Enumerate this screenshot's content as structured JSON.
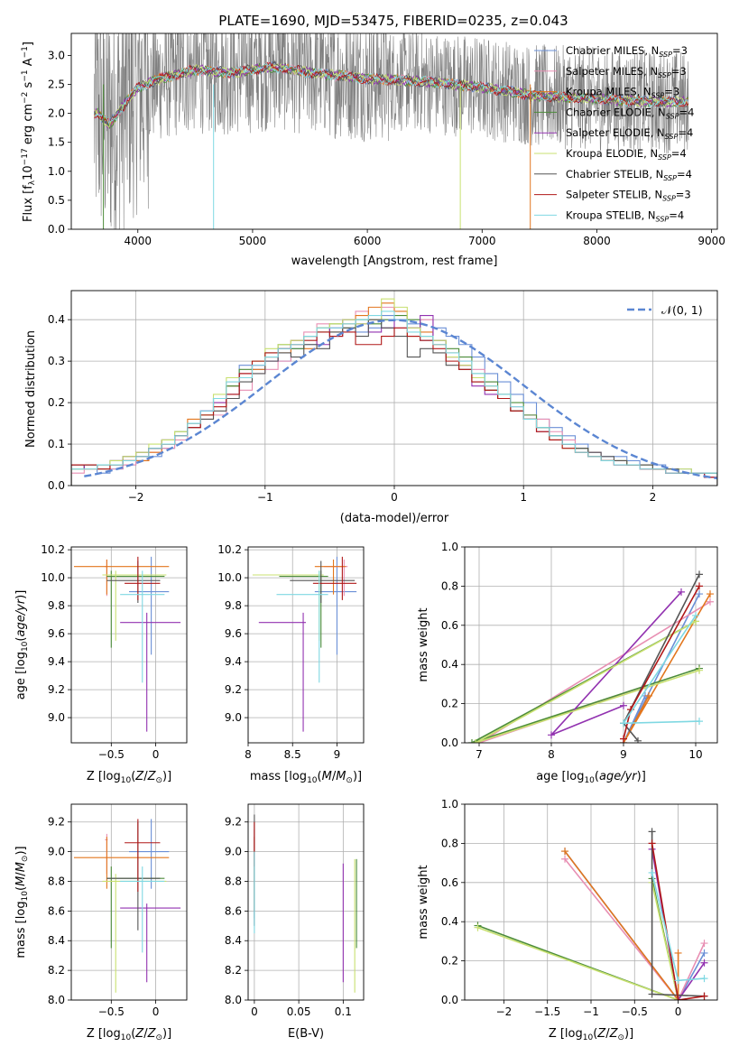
{
  "figure_title": "PLATE=1690, MJD=53475, FIBERID=0235, z=0.043",
  "colors": {
    "c1": "#6a8fd6",
    "c2": "#e88fb3",
    "c3": "#e2761e",
    "c4": "#4c8c3a",
    "c5": "#9232b0",
    "c6": "#c8e070",
    "c7": "#555555",
    "c8": "#b01818",
    "c9": "#7fd8e2",
    "data": "#808080",
    "gauss": "#5b86d2",
    "grid": "#b0b0b0"
  },
  "chart_data": [
    {
      "id": "spectrum",
      "type": "line",
      "xlabel": "wavelength [Angstrom, rest frame]",
      "ylabel": "Flux [f_λ 10^-17 erg cm^-2 s^-1 A^-1]",
      "xlim": [
        3420,
        9050
      ],
      "ylim": [
        0,
        3.38
      ],
      "xticks": [
        4000,
        5000,
        6000,
        7000,
        8000,
        9000
      ],
      "yticks": [
        0.0,
        0.5,
        1.0,
        1.5,
        2.0,
        2.5,
        3.0
      ],
      "grid": false,
      "legend_position": "top-right",
      "legend": [
        {
          "label": "Chabrier MILES, N",
          "sub": "SSP",
          "n": "=3",
          "color": "c1"
        },
        {
          "label": "Salpeter MILES, N",
          "sub": "SSP",
          "n": "=3",
          "color": "c2"
        },
        {
          "label": "Kroupa MILES, N",
          "sub": "SSP",
          "n": "=3",
          "color": "c3"
        },
        {
          "label": "Chabrier ELODIE, N",
          "sub": "SSP",
          "n": "=4",
          "color": "c4"
        },
        {
          "label": "Salpeter ELODIE, N",
          "sub": "SSP",
          "n": "=4",
          "color": "c5"
        },
        {
          "label": "Kroupa ELODIE, N",
          "sub": "SSP",
          "n": "=4",
          "color": "c6"
        },
        {
          "label": "Chabrier STELIB, N",
          "sub": "SSP",
          "n": "=4",
          "color": "c7"
        },
        {
          "label": "Salpeter STELIB, N",
          "sub": "SSP",
          "n": "=3",
          "color": "c8"
        },
        {
          "label": "Kroupa STELIB, N",
          "sub": "SSP",
          "n": "=4",
          "color": "c9"
        }
      ],
      "data_range": [
        3620,
        8800
      ],
      "model_continuum": [
        [
          3650,
          2.0
        ],
        [
          3750,
          1.8
        ],
        [
          3900,
          2.2
        ],
        [
          4000,
          2.45
        ],
        [
          4200,
          2.6
        ],
        [
          4500,
          2.75
        ],
        [
          4800,
          2.7
        ],
        [
          5000,
          2.75
        ],
        [
          5200,
          2.8
        ],
        [
          5500,
          2.7
        ],
        [
          6000,
          2.6
        ],
        [
          6500,
          2.55
        ],
        [
          7000,
          2.45
        ],
        [
          7500,
          2.3
        ],
        [
          8000,
          2.25
        ],
        [
          8500,
          2.2
        ],
        [
          8800,
          2.2
        ]
      ]
    },
    {
      "id": "residuals",
      "type": "histogram",
      "xlabel": "(data-model)/error",
      "ylabel": "Normed distribution",
      "xlim": [
        -2.5,
        2.5
      ],
      "ylim": [
        0,
        0.47
      ],
      "xticks": [
        -2,
        -1,
        0,
        1,
        2
      ],
      "yticks": [
        0.0,
        0.1,
        0.2,
        0.3,
        0.4
      ],
      "grid": true,
      "legend": "𝒩(0, 1)",
      "legend_position": "top-right",
      "bin_width": 0.1,
      "bins_start": -2.5
    },
    {
      "id": "age_vs_Z",
      "type": "errorbar",
      "xlabel": "Z [log10(Z/Z⊙)]",
      "ylabel": "age [log10(age/yr)]",
      "xlim": [
        -0.95,
        0.35
      ],
      "ylim": [
        8.82,
        10.22
      ],
      "xticks": [
        -0.5,
        0.0
      ],
      "yticks": [
        9.0,
        9.2,
        9.4,
        9.6,
        9.8,
        10.0,
        10.2
      ],
      "grid": true
    },
    {
      "id": "age_vs_mass",
      "type": "errorbar",
      "xlabel": "mass [log10(M/M⊙)]",
      "ylabel": "",
      "xlim": [
        8.0,
        9.3
      ],
      "ylim": [
        8.82,
        10.22
      ],
      "xticks": [
        8.0,
        8.5,
        9.0
      ],
      "yticks": [
        9.0,
        9.2,
        9.4,
        9.6,
        9.8,
        10.0,
        10.2
      ],
      "grid": true
    },
    {
      "id": "weight_vs_age",
      "type": "line",
      "xlabel": "age [log10(age/yr)]",
      "ylabel": "mass weight",
      "xlim": [
        6.8,
        10.3
      ],
      "ylim": [
        0,
        1.0
      ],
      "xticks": [
        7,
        8,
        9,
        10
      ],
      "yticks": [
        0.0,
        0.2,
        0.4,
        0.6,
        0.8,
        1.0
      ],
      "grid": true
    },
    {
      "id": "mass_vs_Z",
      "type": "errorbar",
      "xlabel": "Z [log10(Z/Z⊙)]",
      "ylabel": "mass [log10(M/M⊙)]",
      "xlim": [
        -0.95,
        0.35
      ],
      "ylim": [
        8.0,
        9.32
      ],
      "xticks": [
        -0.5,
        0.0
      ],
      "yticks": [
        8.0,
        8.2,
        8.4,
        8.6,
        8.8,
        9.0,
        9.2
      ],
      "grid": true
    },
    {
      "id": "mass_vs_ebv",
      "type": "errorbar",
      "xlabel": "E(B-V)",
      "ylabel": "",
      "xlim": [
        -0.007,
        0.123
      ],
      "ylim": [
        8.0,
        9.32
      ],
      "xticks": [
        0.0,
        0.05,
        0.1
      ],
      "yticks": [
        8.0,
        8.2,
        8.4,
        8.6,
        8.8,
        9.0,
        9.2
      ],
      "grid": true
    },
    {
      "id": "weight_vs_Z",
      "type": "line",
      "xlabel": "Z [log10(Z/Z⊙)]",
      "ylabel": "mass weight",
      "xlim": [
        -2.45,
        0.45
      ],
      "ylim": [
        0,
        1.0
      ],
      "xticks": [
        -2.0,
        -1.5,
        -1.0,
        -0.5,
        0.0
      ],
      "yticks": [
        0.0,
        0.2,
        0.4,
        0.6,
        0.8,
        1.0
      ],
      "grid": true
    }
  ],
  "models": [
    {
      "color": "c1",
      "age": 9.9,
      "age_err": [
        9.45,
        10.15
      ],
      "Z": -0.05,
      "Z_err": [
        -0.3,
        0.15
      ],
      "mass": 9.0,
      "mass_err": [
        8.75,
        9.22
      ],
      "ebv": 0.0,
      "ebv_err": [
        8.55,
        9.1
      ],
      "sfh": [
        [
          9.3,
          0.24
        ],
        [
          9.0,
          0.0
        ],
        [
          10.05,
          0.76
        ]
      ],
      "zw": [
        [
          0.3,
          0.24
        ],
        [
          0.0,
          0.0
        ],
        [
          -1.3,
          0.76
        ]
      ]
    },
    {
      "color": "c2",
      "age": 10.08,
      "age_err": [
        9.87,
        10.13
      ],
      "Z": -0.55,
      "Z_err": [
        -0.57,
        -0.54
      ],
      "mass": 9.08,
      "mass_err": [
        8.85,
        9.12
      ],
      "ebv": 0.0,
      "ebv_err": [
        8.5,
        9.15
      ],
      "sfh": [
        [
          10.2,
          0.72
        ],
        [
          7.0,
          0.0
        ],
        [
          9.3,
          0.29
        ]
      ],
      "zw": [
        [
          -1.3,
          0.72
        ],
        [
          0.0,
          0.0
        ],
        [
          0.3,
          0.29
        ]
      ]
    },
    {
      "color": "c3",
      "age": 10.08,
      "age_err": [
        9.88,
        10.13
      ],
      "Z": -0.55,
      "Z_err": [
        -0.92,
        0.15
      ],
      "mass": 8.96,
      "mass_err": [
        8.75,
        9.1
      ],
      "ebv": 0.0,
      "ebv_err": [
        8.6,
        9.1
      ],
      "sfh": [
        [
          10.2,
          0.76
        ],
        [
          9.0,
          0.0
        ],
        [
          9.35,
          0.24
        ]
      ],
      "zw": [
        [
          -1.3,
          0.76
        ],
        [
          0.0,
          0.0
        ],
        [
          0.0,
          0.24
        ]
      ]
    },
    {
      "color": "c4",
      "age": 10.01,
      "age_err": [
        9.5,
        10.05
      ],
      "Z": -0.5,
      "Z_err": [
        -0.55,
        0.1
      ],
      "mass": 8.82,
      "mass_err": [
        8.35,
        8.9
      ],
      "ebv": 0.115,
      "ebv_err": [
        8.35,
        8.95
      ],
      "sfh": [
        [
          10.0,
          0.62
        ],
        [
          6.9,
          0.0
        ],
        [
          10.05,
          0.38
        ]
      ],
      "zw": [
        [
          -0.3,
          0.62
        ],
        [
          0.0,
          0.0
        ],
        [
          -2.3,
          0.38
        ]
      ]
    },
    {
      "color": "c5",
      "age": 9.68,
      "age_err": [
        8.9,
        9.75
      ],
      "Z": -0.1,
      "Z_err": [
        -0.4,
        0.28
      ],
      "mass": 8.62,
      "mass_err": [
        8.12,
        8.65
      ],
      "ebv": 0.1,
      "ebv_err": [
        8.12,
        8.92
      ],
      "sfh": [
        [
          9.8,
          0.77
        ],
        [
          8.0,
          0.04
        ],
        [
          9.0,
          0.19
        ]
      ],
      "zw": [
        [
          0.3,
          0.19
        ],
        [
          0.0,
          0.0
        ],
        [
          -0.3,
          0.77
        ]
      ]
    },
    {
      "color": "c6",
      "age": 10.02,
      "age_err": [
        9.55,
        10.05
      ],
      "Z": -0.45,
      "Z_err": [
        -0.6,
        0.12
      ],
      "mass": 8.8,
      "mass_err": [
        8.05,
        8.85
      ],
      "ebv": 0.113,
      "ebv_err": [
        8.05,
        8.95
      ],
      "sfh": [
        [
          10.0,
          0.62
        ],
        [
          6.95,
          0.0
        ],
        [
          10.05,
          0.37
        ]
      ],
      "zw": [
        [
          -0.3,
          0.6
        ],
        [
          0.0,
          0.0
        ],
        [
          -2.3,
          0.37
        ]
      ]
    },
    {
      "color": "c7",
      "age": 9.98,
      "age_err": [
        9.82,
        10.12
      ],
      "Z": -0.2,
      "Z_err": [
        -0.55,
        0.05
      ],
      "mass": 8.82,
      "mass_err": [
        8.47,
        9.2
      ],
      "ebv": 0.0,
      "ebv_err": [
        8.5,
        9.25
      ],
      "sfh": [
        [
          10.05,
          0.86
        ],
        [
          9.0,
          0.1
        ],
        [
          9.2,
          0.01
        ]
      ],
      "zw": [
        [
          -0.3,
          0.86
        ],
        [
          -0.3,
          0.03
        ],
        [
          0.3,
          0.02
        ]
      ]
    },
    {
      "color": "c8",
      "age": 9.96,
      "age_err": [
        9.84,
        10.15
      ],
      "Z": -0.2,
      "Z_err": [
        -0.35,
        0.05
      ],
      "mass": 9.06,
      "mass_err": [
        8.73,
        9.22
      ],
      "ebv": 0.0,
      "ebv_err": [
        8.9,
        9.2
      ],
      "sfh": [
        [
          10.05,
          0.8
        ],
        [
          9.1,
          0.17
        ],
        [
          9.0,
          0.02
        ]
      ],
      "zw": [
        [
          -0.3,
          0.8
        ],
        [
          0.0,
          0.0
        ],
        [
          0.3,
          0.02
        ]
      ]
    },
    {
      "color": "c9",
      "age": 9.88,
      "age_err": [
        9.25,
        10.05
      ],
      "Z": -0.15,
      "Z_err": [
        -0.4,
        0.1
      ],
      "mass": 8.8,
      "mass_err": [
        8.32,
        8.9
      ],
      "ebv": 0.0,
      "ebv_err": [
        8.45,
        9.0
      ],
      "sfh": [
        [
          10.0,
          0.65
        ],
        [
          9.0,
          0.1
        ],
        [
          10.05,
          0.11
        ]
      ],
      "zw": [
        [
          -0.3,
          0.65
        ],
        [
          0.0,
          0.1
        ],
        [
          0.3,
          0.11
        ]
      ]
    }
  ],
  "histograms": {
    "c1": [
      0.04,
      0.05,
      0.03,
      0.04,
      0.05,
      0.06,
      0.07,
      0.09,
      0.12,
      0.15,
      0.18,
      0.21,
      0.24,
      0.29,
      0.28,
      0.31,
      0.3,
      0.33,
      0.34,
      0.38,
      0.36,
      0.4,
      0.37,
      0.38,
      0.41,
      0.4,
      0.39,
      0.35,
      0.38,
      0.36,
      0.34,
      0.31,
      0.27,
      0.25,
      0.22,
      0.2,
      0.16,
      0.14,
      0.12,
      0.1,
      0.08,
      0.07,
      0.07,
      0.06,
      0.05,
      0.05,
      0.04,
      0.04,
      0.03,
      0.03
    ],
    "c2": [
      0.03,
      0.04,
      0.04,
      0.04,
      0.05,
      0.06,
      0.08,
      0.09,
      0.11,
      0.14,
      0.16,
      0.17,
      0.25,
      0.23,
      0.27,
      0.28,
      0.3,
      0.35,
      0.37,
      0.39,
      0.36,
      0.37,
      0.42,
      0.4,
      0.43,
      0.38,
      0.38,
      0.4,
      0.34,
      0.31,
      0.3,
      0.28,
      0.25,
      0.22,
      0.19,
      0.17,
      0.16,
      0.13,
      0.11,
      0.09,
      0.08,
      0.06,
      0.06,
      0.05,
      0.05,
      0.04,
      0.04,
      0.03,
      0.03,
      0.03
    ],
    "c3": [
      0.05,
      0.04,
      0.04,
      0.05,
      0.06,
      0.06,
      0.08,
      0.1,
      0.12,
      0.16,
      0.17,
      0.2,
      0.24,
      0.27,
      0.28,
      0.31,
      0.32,
      0.35,
      0.33,
      0.38,
      0.37,
      0.39,
      0.41,
      0.43,
      0.44,
      0.42,
      0.36,
      0.37,
      0.34,
      0.32,
      0.29,
      0.26,
      0.24,
      0.21,
      0.18,
      0.16,
      0.13,
      0.11,
      0.1,
      0.08,
      0.07,
      0.06,
      0.05,
      0.05,
      0.04,
      0.04,
      0.03,
      0.03,
      0.03,
      0.02
    ],
    "c4": [
      0.04,
      0.05,
      0.05,
      0.06,
      0.07,
      0.08,
      0.09,
      0.11,
      0.13,
      0.15,
      0.17,
      0.21,
      0.24,
      0.28,
      0.3,
      0.32,
      0.34,
      0.33,
      0.36,
      0.37,
      0.39,
      0.38,
      0.4,
      0.39,
      0.4,
      0.41,
      0.4,
      0.36,
      0.35,
      0.33,
      0.31,
      0.27,
      0.25,
      0.22,
      0.2,
      0.17,
      0.14,
      0.12,
      0.1,
      0.09,
      0.07,
      0.06,
      0.06,
      0.05,
      0.05,
      0.04,
      0.04,
      0.03,
      0.03,
      0.03
    ],
    "c5": [
      0.05,
      0.04,
      0.05,
      0.06,
      0.07,
      0.08,
      0.09,
      0.11,
      0.12,
      0.15,
      0.18,
      0.2,
      0.22,
      0.27,
      0.29,
      0.3,
      0.33,
      0.35,
      0.36,
      0.34,
      0.38,
      0.4,
      0.39,
      0.37,
      0.38,
      0.4,
      0.38,
      0.41,
      0.35,
      0.31,
      0.29,
      0.24,
      0.22,
      0.21,
      0.18,
      0.16,
      0.13,
      0.11,
      0.1,
      0.08,
      0.07,
      0.06,
      0.05,
      0.05,
      0.04,
      0.04,
      0.03,
      0.03,
      0.03,
      0.02
    ],
    "c6": [
      0.04,
      0.04,
      0.05,
      0.06,
      0.07,
      0.08,
      0.1,
      0.11,
      0.13,
      0.15,
      0.17,
      0.22,
      0.26,
      0.26,
      0.3,
      0.33,
      0.34,
      0.35,
      0.36,
      0.38,
      0.39,
      0.4,
      0.39,
      0.4,
      0.45,
      0.43,
      0.38,
      0.36,
      0.35,
      0.31,
      0.29,
      0.26,
      0.23,
      0.21,
      0.18,
      0.16,
      0.14,
      0.11,
      0.09,
      0.08,
      0.07,
      0.06,
      0.06,
      0.05,
      0.05,
      0.04,
      0.04,
      0.04,
      0.03,
      0.03
    ],
    "c7": [
      0.05,
      0.05,
      0.04,
      0.05,
      0.06,
      0.07,
      0.09,
      0.1,
      0.12,
      0.14,
      0.16,
      0.18,
      0.21,
      0.25,
      0.27,
      0.3,
      0.32,
      0.31,
      0.34,
      0.33,
      0.37,
      0.38,
      0.36,
      0.4,
      0.38,
      0.36,
      0.31,
      0.33,
      0.32,
      0.29,
      0.28,
      0.25,
      0.23,
      0.21,
      0.18,
      0.16,
      0.14,
      0.12,
      0.1,
      0.09,
      0.08,
      0.07,
      0.06,
      0.05,
      0.05,
      0.04,
      0.04,
      0.03,
      0.03,
      0.03
    ],
    "c8": [
      0.05,
      0.05,
      0.04,
      0.05,
      0.06,
      0.07,
      0.09,
      0.1,
      0.12,
      0.14,
      0.17,
      0.19,
      0.22,
      0.27,
      0.3,
      0.32,
      0.33,
      0.34,
      0.35,
      0.37,
      0.36,
      0.37,
      0.34,
      0.34,
      0.36,
      0.38,
      0.36,
      0.35,
      0.33,
      0.3,
      0.28,
      0.25,
      0.23,
      0.21,
      0.18,
      0.16,
      0.13,
      0.11,
      0.09,
      0.08,
      0.07,
      0.06,
      0.05,
      0.05,
      0.04,
      0.04,
      0.03,
      0.03,
      0.03,
      0.02
    ],
    "c9": [
      0.04,
      0.04,
      0.05,
      0.05,
      0.06,
      0.07,
      0.09,
      0.1,
      0.12,
      0.15,
      0.18,
      0.21,
      0.25,
      0.26,
      0.29,
      0.31,
      0.33,
      0.34,
      0.36,
      0.38,
      0.38,
      0.39,
      0.4,
      0.41,
      0.42,
      0.4,
      0.37,
      0.36,
      0.34,
      0.32,
      0.3,
      0.27,
      0.24,
      0.22,
      0.19,
      0.16,
      0.14,
      0.12,
      0.1,
      0.08,
      0.07,
      0.06,
      0.05,
      0.05,
      0.04,
      0.04,
      0.03,
      0.03,
      0.03,
      0.03
    ]
  }
}
